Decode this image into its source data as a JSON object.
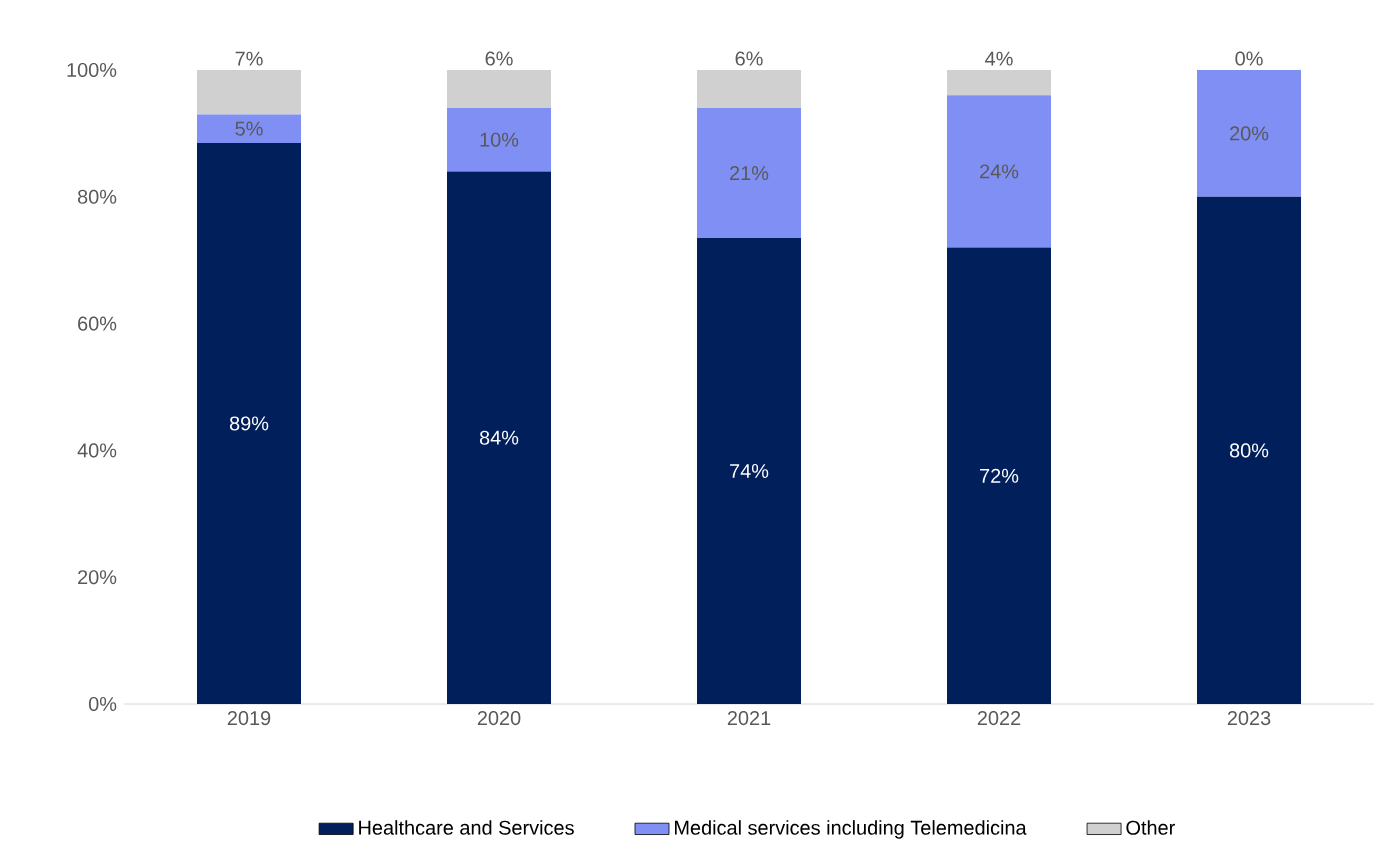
{
  "chart_data": {
    "type": "bar",
    "stacked": true,
    "categories": [
      "2019",
      "2020",
      "2021",
      "2022",
      "2023"
    ],
    "series": [
      {
        "name": "Healthcare and Services",
        "color": "#001f5b",
        "values": [
          88.5,
          84,
          73.5,
          72,
          80
        ],
        "value_labels": [
          "89%",
          "84%",
          "74%",
          "72%",
          "80%"
        ]
      },
      {
        "name": "Medical services including Telemedicina",
        "color": "#7f8ff4",
        "values": [
          4.5,
          10,
          20.5,
          24,
          20
        ],
        "value_labels": [
          "5%",
          "10%",
          "21%",
          "24%",
          "20%"
        ]
      },
      {
        "name": "Other",
        "color": "#d0d0d0",
        "values": [
          7,
          6,
          6,
          4,
          0
        ],
        "value_labels": [
          "7%",
          "6%",
          "6%",
          "4%",
          "0%"
        ]
      }
    ],
    "ylim": [
      0,
      100
    ],
    "yticks": [
      {
        "value": 0,
        "label": "0%"
      },
      {
        "value": 20,
        "label": "20%"
      },
      {
        "value": 40,
        "label": "40%"
      },
      {
        "value": 60,
        "label": "60%"
      },
      {
        "value": 80,
        "label": "80%"
      },
      {
        "value": 100,
        "label": "100%"
      }
    ],
    "legend": "bottom"
  }
}
